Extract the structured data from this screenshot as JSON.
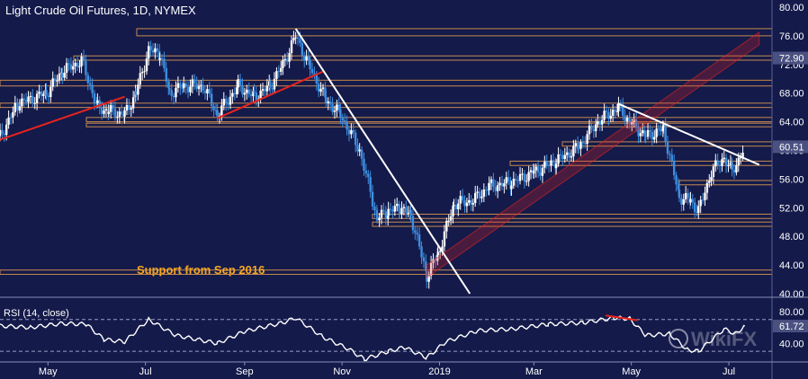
{
  "chart_data": {
    "type": "candlestick",
    "title": "Light Crude Oil Futures, 1D, NYMEX",
    "y_ticks": [
      80.0,
      76.0,
      72.0,
      68.0,
      64.0,
      60.0,
      56.0,
      52.0,
      48.0,
      44.0,
      40.0
    ],
    "ylim": [
      40,
      81
    ],
    "x_ticks": [
      "May",
      "Jul",
      "Sep",
      "Nov",
      "2019",
      "Mar",
      "May",
      "Jul"
    ],
    "price_tags": [
      {
        "value": 72.9,
        "label": "72.90"
      },
      {
        "value": 60.51,
        "label": "60.51"
      }
    ],
    "annotation": "Support from Sep 2016",
    "price_path": [
      [
        "2018-04-01",
        62.0
      ],
      [
        "2018-04-12",
        66.5
      ],
      [
        "2018-04-30",
        68.0
      ],
      [
        "2018-05-10",
        71.0
      ],
      [
        "2018-05-22",
        72.5
      ],
      [
        "2018-06-01",
        66.0
      ],
      [
        "2018-06-08",
        65.5
      ],
      [
        "2018-06-18",
        65.0
      ],
      [
        "2018-06-25",
        68.0
      ],
      [
        "2018-07-03",
        74.0
      ],
      [
        "2018-07-10",
        73.5
      ],
      [
        "2018-07-16",
        68.0
      ],
      [
        "2018-07-25",
        69.0
      ],
      [
        "2018-08-06",
        69.0
      ],
      [
        "2018-08-15",
        65.0
      ],
      [
        "2018-08-28",
        69.0
      ],
      [
        "2018-09-07",
        67.5
      ],
      [
        "2018-09-17",
        69.0
      ],
      [
        "2018-09-25",
        72.0
      ],
      [
        "2018-10-03",
        76.0
      ],
      [
        "2018-10-12",
        71.5
      ],
      [
        "2018-10-22",
        67.0
      ],
      [
        "2018-10-31",
        65.0
      ],
      [
        "2018-11-12",
        60.0
      ],
      [
        "2018-11-23",
        50.5
      ],
      [
        "2018-11-30",
        51.5
      ],
      [
        "2018-12-07",
        52.0
      ],
      [
        "2018-12-14",
        51.0
      ],
      [
        "2018-12-24",
        42.5
      ],
      [
        "2018-12-31",
        45.5
      ],
      [
        "2019-01-10",
        52.5
      ],
      [
        "2019-01-22",
        53.0
      ],
      [
        "2019-02-01",
        55.0
      ],
      [
        "2019-02-15",
        55.5
      ],
      [
        "2019-03-01",
        57.0
      ],
      [
        "2019-03-15",
        58.5
      ],
      [
        "2019-03-29",
        60.5
      ],
      [
        "2019-04-10",
        64.0
      ],
      [
        "2019-04-23",
        66.0
      ],
      [
        "2019-04-30",
        64.0
      ],
      [
        "2019-05-10",
        62.0
      ],
      [
        "2019-05-21",
        63.0
      ],
      [
        "2019-05-31",
        53.5
      ],
      [
        "2019-06-07",
        53.0
      ],
      [
        "2019-06-12",
        51.5
      ],
      [
        "2019-06-20",
        57.0
      ],
      [
        "2019-06-28",
        59.0
      ],
      [
        "2019-07-03",
        57.0
      ],
      [
        "2019-07-11",
        60.5
      ]
    ],
    "rsi": {
      "label": "RSI (14, close)",
      "ylim": [
        20,
        90
      ],
      "y_ticks": [
        80.0,
        40.0
      ],
      "levels": [
        70,
        30
      ],
      "last_value": 61.72,
      "last_label": "61.72",
      "values_path": [
        [
          "2018-04-01",
          62
        ],
        [
          "2018-04-20",
          60
        ],
        [
          "2018-05-10",
          65
        ],
        [
          "2018-05-25",
          64
        ],
        [
          "2018-06-05",
          45
        ],
        [
          "2018-06-18",
          42
        ],
        [
          "2018-07-03",
          70
        ],
        [
          "2018-07-20",
          50
        ],
        [
          "2018-08-15",
          40
        ],
        [
          "2018-09-01",
          55
        ],
        [
          "2018-09-25",
          66
        ],
        [
          "2018-10-03",
          72
        ],
        [
          "2018-10-20",
          48
        ],
        [
          "2018-11-05",
          33
        ],
        [
          "2018-11-15",
          20
        ],
        [
          "2018-11-30",
          30
        ],
        [
          "2018-12-10",
          35
        ],
        [
          "2018-12-24",
          22
        ],
        [
          "2019-01-05",
          42
        ],
        [
          "2019-01-25",
          56
        ],
        [
          "2019-02-15",
          58
        ],
        [
          "2019-03-10",
          64
        ],
        [
          "2019-04-01",
          66
        ],
        [
          "2019-04-20",
          72
        ],
        [
          "2019-04-30",
          71
        ],
        [
          "2019-05-10",
          50
        ],
        [
          "2019-05-25",
          52
        ],
        [
          "2019-06-05",
          32
        ],
        [
          "2019-06-12",
          30
        ],
        [
          "2019-06-28",
          58
        ],
        [
          "2019-07-05",
          52
        ],
        [
          "2019-07-11",
          61.72
        ]
      ]
    },
    "support_zones": [
      [
        76.0,
        77.0
      ],
      [
        72.6,
        73.2
      ],
      [
        69.0,
        69.8
      ],
      [
        66.0,
        66.6
      ],
      [
        64.0,
        64.6
      ],
      [
        63.3,
        63.8
      ],
      [
        60.6,
        61.2
      ],
      [
        57.9,
        58.5
      ],
      [
        55.2,
        55.8
      ],
      [
        50.5,
        51.1
      ],
      [
        49.4,
        50.0
      ],
      [
        42.7,
        43.3
      ]
    ],
    "trendlines": [
      {
        "from": [
          "2018-04-01",
          61.5
        ],
        "to": [
          "2018-06-18",
          67.5
        ],
        "color": "#e8231e"
      },
      {
        "from": [
          "2018-08-15",
          64.5
        ],
        "to": [
          "2018-10-20",
          71.0
        ],
        "color": "#e8231e"
      },
      {
        "from": [
          "2018-10-03",
          77.0
        ],
        "to": [
          "2019-01-20",
          40.0
        ],
        "color": "#ffffff"
      },
      {
        "from": [
          "2019-04-23",
          66.5
        ],
        "to": [
          "2019-07-20",
          58.0
        ],
        "color": "#ffffff"
      }
    ],
    "channel": {
      "from": [
        "2018-12-24",
        44.0
      ],
      "to": [
        "2019-07-20",
        76.5
      ],
      "color": "#e8231e"
    },
    "rsi_divergence": {
      "from": [
        "2019-04-15",
        75
      ],
      "to": [
        "2019-05-05",
        69
      ],
      "color": "#e8231e"
    },
    "colors": {
      "up": "#ffffff",
      "down": "#3d8fe0",
      "zone": "#c68a4f",
      "background": "#141a4a"
    },
    "watermark": "WikiFX"
  }
}
